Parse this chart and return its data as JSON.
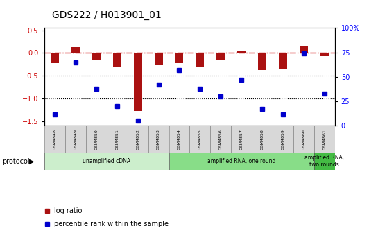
{
  "title": "GDS222 / H013901_01",
  "samples": [
    "GSM4848",
    "GSM4849",
    "GSM4850",
    "GSM4851",
    "GSM4852",
    "GSM4853",
    "GSM4854",
    "GSM4855",
    "GSM4856",
    "GSM4857",
    "GSM4858",
    "GSM4859",
    "GSM4860",
    "GSM4861"
  ],
  "log_ratio": [
    -0.22,
    0.13,
    -0.15,
    -0.32,
    -1.27,
    -0.27,
    -0.22,
    -0.32,
    -0.15,
    0.05,
    -0.38,
    -0.35,
    0.15,
    -0.07
  ],
  "percentile": [
    12,
    65,
    38,
    20,
    5,
    42,
    57,
    38,
    30,
    47,
    17,
    12,
    74,
    33
  ],
  "bar_color": "#aa1111",
  "dot_color": "#0000cc",
  "zero_line_color": "#cc0000",
  "dotted_line_color": "#000000",
  "ylim_left": [
    -1.6,
    0.55
  ],
  "ylim_right": [
    0,
    100
  ],
  "yticks_left": [
    0.5,
    0.0,
    -0.5,
    -1.0,
    -1.5
  ],
  "yticks_right": [
    0,
    25,
    50,
    75,
    100
  ],
  "protocols": [
    {
      "label": "unamplified cDNA",
      "start": 0,
      "end": 5,
      "color": "#cceecc"
    },
    {
      "label": "amplified RNA, one round",
      "start": 6,
      "end": 12,
      "color": "#88dd88"
    },
    {
      "label": "amplified RNA,\ntwo rounds",
      "start": 13,
      "end": 13,
      "color": "#44bb44"
    }
  ],
  "legend_items": [
    {
      "label": "log ratio",
      "color": "#aa1111"
    },
    {
      "label": "percentile rank within the sample",
      "color": "#0000cc"
    }
  ],
  "background_color": "#ffffff",
  "title_fontsize": 10,
  "tick_fontsize": 7
}
